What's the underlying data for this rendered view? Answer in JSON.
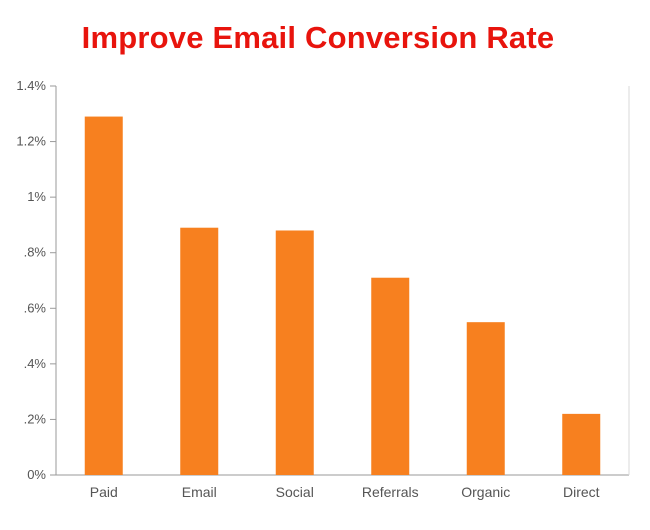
{
  "colors": {
    "title": "#e8140d",
    "bar": "#f7801f",
    "axis": "#9a9a9a",
    "gridline": "#d8d8d8",
    "label": "#555555",
    "background": "#ffffff"
  },
  "chart_data": {
    "type": "bar",
    "title": "Improve Email Conversion Rate",
    "xlabel": "",
    "ylabel": "",
    "categories": [
      "Paid",
      "Email",
      "Social",
      "Referrals",
      "Organic",
      "Direct"
    ],
    "values": [
      1.29,
      0.89,
      0.88,
      0.71,
      0.55,
      0.22
    ],
    "value_unit": "%",
    "ylim": [
      0,
      1.4
    ],
    "yticks": [
      0,
      0.2,
      0.4,
      0.6,
      0.8,
      1.0,
      1.2,
      1.4
    ],
    "ytick_labels": [
      "0%",
      ".2%",
      ".4%",
      ".6%",
      ".8%",
      "1%",
      "1.2%",
      "1.4%"
    ],
    "grid": false,
    "legend": "none"
  }
}
